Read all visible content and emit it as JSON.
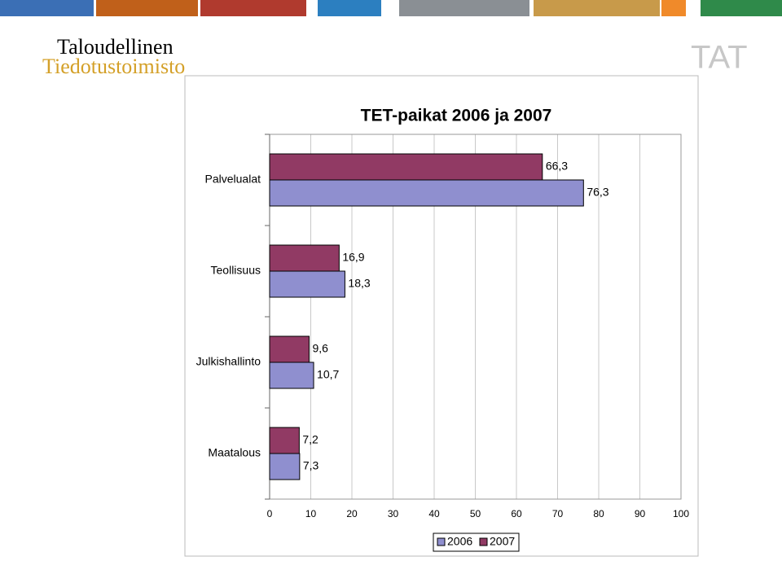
{
  "logo": {
    "line1": "Taloudellinen",
    "line2": "Tiedotustoimisto",
    "mark": "TAT"
  },
  "chart_data": {
    "type": "hbar",
    "title": "TET-paikat 2006 ja 2007",
    "categories": [
      "Palvelualat",
      "Teollisuus",
      "Julkishallinto",
      "Maatalous"
    ],
    "series": [
      {
        "name": "2006",
        "color": "#8f8fcf",
        "values": [
          76.3,
          18.3,
          10.7,
          7.3
        ],
        "value_labels": [
          "76,3",
          "18,3",
          "10,7",
          "7,3"
        ]
      },
      {
        "name": "2007",
        "color": "#913a64",
        "values": [
          66.3,
          16.9,
          9.6,
          7.2
        ],
        "value_labels": [
          "66,3",
          "16,9",
          "9,6",
          "7,2"
        ]
      }
    ],
    "xlim": [
      0,
      100
    ],
    "xticks": [
      0,
      10,
      20,
      30,
      40,
      50,
      60,
      70,
      80,
      90,
      100
    ],
    "grid": true,
    "legend": "bottom"
  }
}
